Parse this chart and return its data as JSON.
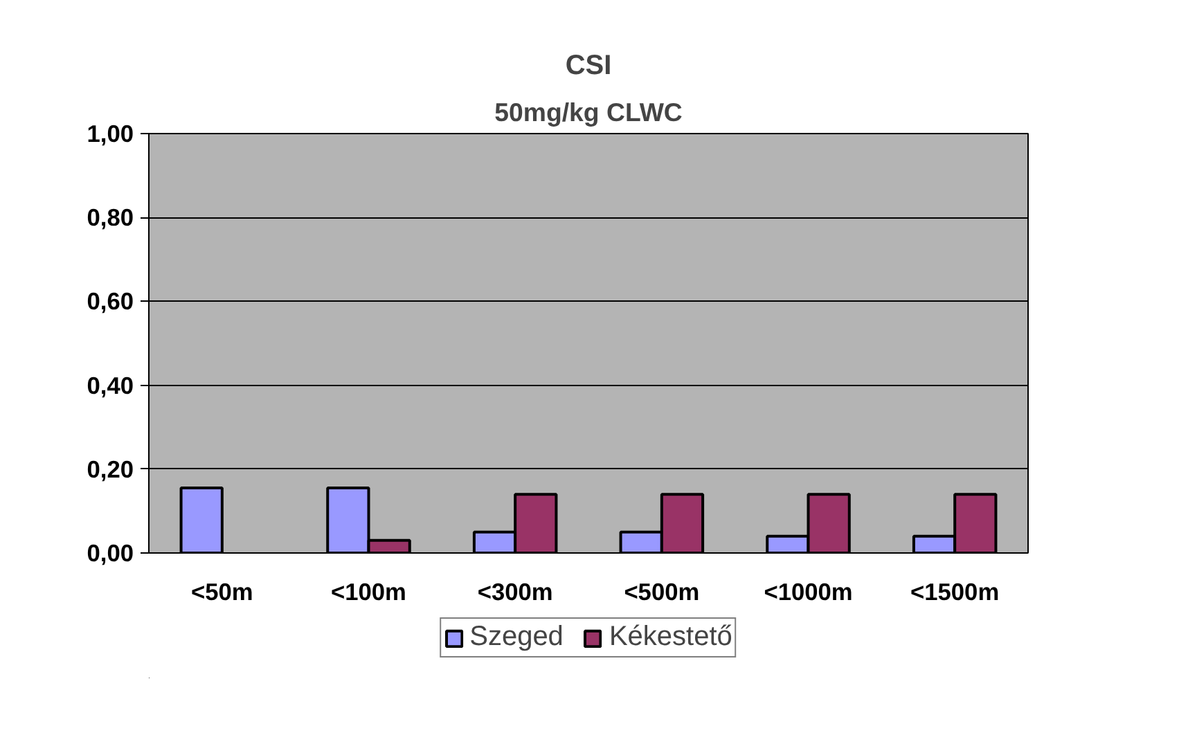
{
  "chart_data": {
    "type": "bar",
    "title": "CSI",
    "subtitle": "50mg/kg CLWC",
    "categories": [
      "<50m",
      "<100m",
      "<300m",
      "<500m",
      "<1000m",
      "<1500m"
    ],
    "series": [
      {
        "name": "Szeged",
        "color": "#9999ff",
        "values": [
          0.155,
          0.155,
          0.05,
          0.05,
          0.04,
          0.04
        ]
      },
      {
        "name": "Kékestető",
        "color": "#993366",
        "values": [
          null,
          0.03,
          0.14,
          0.14,
          0.14,
          0.14
        ]
      }
    ],
    "ylim": [
      0,
      1
    ],
    "yticks": [
      {
        "value": 0,
        "label": "0,00"
      },
      {
        "value": 0.2,
        "label": "0,20"
      },
      {
        "value": 0.4,
        "label": "0,40"
      },
      {
        "value": 0.6,
        "label": "0,60"
      },
      {
        "value": 0.8,
        "label": "0,80"
      },
      {
        "value": 1,
        "label": "1,00"
      }
    ],
    "grid": "y",
    "legend": "bottom"
  }
}
